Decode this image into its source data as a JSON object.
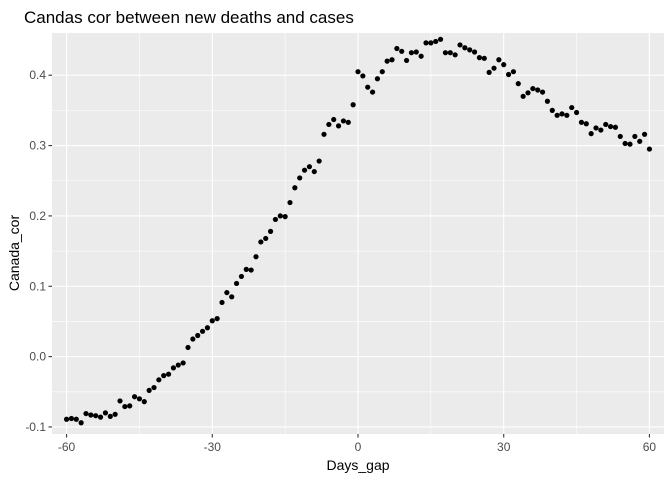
{
  "chart_data": {
    "type": "scatter",
    "title": "Candas cor between new deaths and cases",
    "xlabel": "Days_gap",
    "ylabel": "Canada_cor",
    "xlim": [
      -63,
      63
    ],
    "ylim": [
      -0.11,
      0.46
    ],
    "xticks": [
      -60,
      -30,
      0,
      30,
      60
    ],
    "xtick_labels": [
      "-60",
      "-30",
      "0",
      "30",
      "60"
    ],
    "yticks": [
      -0.1,
      0.0,
      0.1,
      0.2,
      0.3,
      0.4
    ],
    "ytick_labels": [
      "-0.1",
      "0.0",
      "0.1",
      "0.2",
      "0.3",
      "0.4"
    ],
    "grid": true,
    "legend": "none",
    "colors": {
      "panel": "#ebebeb",
      "grid_major": "#ffffff",
      "point": "#000000"
    },
    "points": [
      [
        -60,
        -0.089
      ],
      [
        -59,
        -0.088
      ],
      [
        -58,
        -0.089
      ],
      [
        -57,
        -0.094
      ],
      [
        -56,
        -0.081
      ],
      [
        -55,
        -0.083
      ],
      [
        -54,
        -0.084
      ],
      [
        -53,
        -0.086
      ],
      [
        -52,
        -0.08
      ],
      [
        -51,
        -0.085
      ],
      [
        -50,
        -0.082
      ],
      [
        -49,
        -0.063
      ],
      [
        -48,
        -0.071
      ],
      [
        -47,
        -0.07
      ],
      [
        -46,
        -0.057
      ],
      [
        -45,
        -0.06
      ],
      [
        -44,
        -0.064
      ],
      [
        -43,
        -0.048
      ],
      [
        -42,
        -0.044
      ],
      [
        -41,
        -0.033
      ],
      [
        -40,
        -0.027
      ],
      [
        -39,
        -0.025
      ],
      [
        -38,
        -0.016
      ],
      [
        -37,
        -0.012
      ],
      [
        -36,
        -0.009
      ],
      [
        -35,
        0.013
      ],
      [
        -34,
        0.025
      ],
      [
        -33,
        0.03
      ],
      [
        -32,
        0.036
      ],
      [
        -31,
        0.041
      ],
      [
        -30,
        0.051
      ],
      [
        -29,
        0.054
      ],
      [
        -28,
        0.077
      ],
      [
        -27,
        0.091
      ],
      [
        -26,
        0.085
      ],
      [
        -25,
        0.104
      ],
      [
        -24,
        0.114
      ],
      [
        -23,
        0.124
      ],
      [
        -22,
        0.123
      ],
      [
        -21,
        0.142
      ],
      [
        -20,
        0.163
      ],
      [
        -19,
        0.168
      ],
      [
        -18,
        0.178
      ],
      [
        -17,
        0.195
      ],
      [
        -16,
        0.2
      ],
      [
        -15,
        0.199
      ],
      [
        -14,
        0.219
      ],
      [
        -13,
        0.24
      ],
      [
        -12,
        0.254
      ],
      [
        -11,
        0.265
      ],
      [
        -10,
        0.27
      ],
      [
        -9,
        0.263
      ],
      [
        -8,
        0.278
      ],
      [
        -7,
        0.316
      ],
      [
        -6,
        0.33
      ],
      [
        -5,
        0.337
      ],
      [
        -4,
        0.328
      ],
      [
        -3,
        0.335
      ],
      [
        -2,
        0.333
      ],
      [
        -1,
        0.358
      ],
      [
        0,
        0.405
      ],
      [
        1,
        0.399
      ],
      [
        2,
        0.383
      ],
      [
        3,
        0.376
      ],
      [
        4,
        0.395
      ],
      [
        5,
        0.405
      ],
      [
        6,
        0.42
      ],
      [
        7,
        0.422
      ],
      [
        8,
        0.438
      ],
      [
        9,
        0.434
      ],
      [
        10,
        0.421
      ],
      [
        11,
        0.432
      ],
      [
        12,
        0.433
      ],
      [
        13,
        0.427
      ],
      [
        14,
        0.446
      ],
      [
        15,
        0.446
      ],
      [
        16,
        0.448
      ],
      [
        17,
        0.451
      ],
      [
        18,
        0.432
      ],
      [
        19,
        0.432
      ],
      [
        20,
        0.429
      ],
      [
        21,
        0.443
      ],
      [
        22,
        0.439
      ],
      [
        23,
        0.436
      ],
      [
        24,
        0.433
      ],
      [
        25,
        0.425
      ],
      [
        26,
        0.424
      ],
      [
        27,
        0.404
      ],
      [
        28,
        0.41
      ],
      [
        29,
        0.422
      ],
      [
        30,
        0.415
      ],
      [
        31,
        0.401
      ],
      [
        32,
        0.405
      ],
      [
        33,
        0.388
      ],
      [
        34,
        0.37
      ],
      [
        35,
        0.375
      ],
      [
        36,
        0.381
      ],
      [
        37,
        0.379
      ],
      [
        38,
        0.376
      ],
      [
        39,
        0.363
      ],
      [
        40,
        0.35
      ],
      [
        41,
        0.343
      ],
      [
        42,
        0.345
      ],
      [
        43,
        0.343
      ],
      [
        44,
        0.354
      ],
      [
        45,
        0.347
      ],
      [
        46,
        0.333
      ],
      [
        47,
        0.331
      ],
      [
        48,
        0.317
      ],
      [
        49,
        0.325
      ],
      [
        50,
        0.322
      ],
      [
        51,
        0.33
      ],
      [
        52,
        0.327
      ],
      [
        53,
        0.326
      ],
      [
        54,
        0.313
      ],
      [
        55,
        0.303
      ],
      [
        56,
        0.302
      ],
      [
        57,
        0.313
      ],
      [
        58,
        0.306
      ],
      [
        59,
        0.316
      ],
      [
        60,
        0.295
      ]
    ]
  }
}
